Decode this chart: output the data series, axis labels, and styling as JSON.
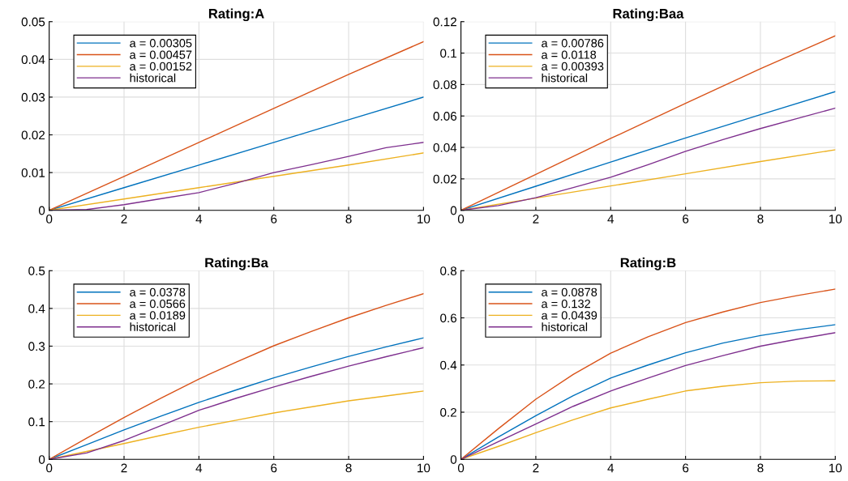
{
  "chart_data": [
    {
      "type": "line",
      "title": "Rating:A",
      "xlim": [
        0,
        10
      ],
      "ylim": [
        0,
        0.05
      ],
      "xticks": [
        0,
        2,
        4,
        6,
        8,
        10
      ],
      "yticks": [
        0,
        0.01,
        0.02,
        0.03,
        0.04,
        0.05
      ],
      "grid": true,
      "legend": "top left",
      "series": [
        {
          "name": "a = 0.00305",
          "color": "#0072bd",
          "x": [
            0,
            2,
            4,
            6,
            8,
            10
          ],
          "values": [
            0,
            0.006,
            0.012,
            0.018,
            0.024,
            0.03
          ]
        },
        {
          "name": "a = 0.00457",
          "color": "#d95319",
          "x": [
            0,
            2,
            4,
            6,
            8,
            10
          ],
          "values": [
            0,
            0.009,
            0.018,
            0.027,
            0.036,
            0.0447
          ]
        },
        {
          "name": "a = 0.00152",
          "color": "#edb120",
          "x": [
            0,
            2,
            4,
            6,
            8,
            10
          ],
          "values": [
            0,
            0.003,
            0.006,
            0.009,
            0.012,
            0.0152
          ]
        },
        {
          "name": "historical",
          "color": "#7e2f8e",
          "x": [
            0,
            1,
            2,
            3,
            4,
            5,
            6,
            7,
            8,
            9,
            10
          ],
          "values": [
            0,
            0.0002,
            0.0015,
            0.0031,
            0.0047,
            0.0072,
            0.01,
            0.0121,
            0.0143,
            0.0166,
            0.018
          ]
        }
      ]
    },
    {
      "type": "line",
      "title": "Rating:Baa",
      "xlim": [
        0,
        10
      ],
      "ylim": [
        0,
        0.12
      ],
      "xticks": [
        0,
        2,
        4,
        6,
        8,
        10
      ],
      "yticks": [
        0,
        0.02,
        0.04,
        0.06,
        0.08,
        0.1,
        0.12
      ],
      "grid": true,
      "legend": "top left",
      "series": [
        {
          "name": "a = 0.00786",
          "color": "#0072bd",
          "x": [
            0,
            2,
            4,
            6,
            8,
            10
          ],
          "values": [
            0,
            0.0153,
            0.0307,
            0.046,
            0.0608,
            0.0755
          ]
        },
        {
          "name": "a = 0.0118",
          "color": "#d95319",
          "x": [
            0,
            2,
            4,
            6,
            8,
            10
          ],
          "values": [
            0,
            0.0228,
            0.0457,
            0.068,
            0.09,
            0.111
          ]
        },
        {
          "name": "a = 0.00393",
          "color": "#edb120",
          "x": [
            0,
            2,
            4,
            6,
            8,
            10
          ],
          "values": [
            0,
            0.0078,
            0.0155,
            0.0232,
            0.031,
            0.0385
          ]
        },
        {
          "name": "historical",
          "color": "#7e2f8e",
          "x": [
            0,
            1,
            2,
            3,
            4,
            5,
            6,
            7,
            8,
            9,
            10
          ],
          "values": [
            0,
            0.003,
            0.008,
            0.0145,
            0.021,
            0.029,
            0.0375,
            0.045,
            0.052,
            0.0585,
            0.065
          ]
        }
      ]
    },
    {
      "type": "line",
      "title": "Rating:Ba",
      "xlim": [
        0,
        10
      ],
      "ylim": [
        0,
        0.5
      ],
      "xticks": [
        0,
        2,
        4,
        6,
        8,
        10
      ],
      "yticks": [
        0,
        0.1,
        0.2,
        0.3,
        0.4,
        0.5
      ],
      "grid": true,
      "legend": "top left",
      "series": [
        {
          "name": "a = 0.0378",
          "color": "#0072bd",
          "x": [
            0,
            1,
            2,
            3,
            4,
            5,
            6,
            7,
            8,
            9,
            10
          ],
          "values": [
            0,
            0.039,
            0.078,
            0.115,
            0.151,
            0.184,
            0.216,
            0.245,
            0.273,
            0.298,
            0.322
          ]
        },
        {
          "name": "a = 0.0566",
          "color": "#d95319",
          "x": [
            0,
            1,
            2,
            3,
            4,
            5,
            6,
            7,
            8,
            9,
            10
          ],
          "values": [
            0,
            0.056,
            0.111,
            0.163,
            0.213,
            0.258,
            0.301,
            0.339,
            0.375,
            0.408,
            0.439
          ]
        },
        {
          "name": "a = 0.0189",
          "color": "#edb120",
          "x": [
            0,
            1,
            2,
            3,
            4,
            5,
            6,
            7,
            8,
            9,
            10
          ],
          "values": [
            0,
            0.021,
            0.042,
            0.064,
            0.085,
            0.104,
            0.123,
            0.139,
            0.155,
            0.168,
            0.181
          ]
        },
        {
          "name": "historical",
          "color": "#7e2f8e",
          "x": [
            0,
            1,
            2,
            3,
            4,
            5,
            6,
            7,
            8,
            9,
            10
          ],
          "values": [
            0,
            0.017,
            0.05,
            0.09,
            0.13,
            0.162,
            0.192,
            0.22,
            0.247,
            0.272,
            0.296
          ]
        }
      ]
    },
    {
      "type": "line",
      "title": "Rating:B",
      "xlim": [
        0,
        10
      ],
      "ylim": [
        0,
        0.8
      ],
      "xticks": [
        0,
        2,
        4,
        6,
        8,
        10
      ],
      "yticks": [
        0,
        0.2,
        0.4,
        0.6,
        0.8
      ],
      "grid": true,
      "legend": "top left",
      "series": [
        {
          "name": "a = 0.0878",
          "color": "#0072bd",
          "x": [
            0,
            1,
            2,
            3,
            4,
            5,
            6,
            7,
            8,
            9,
            10
          ],
          "values": [
            0,
            0.095,
            0.185,
            0.27,
            0.345,
            0.4,
            0.452,
            0.493,
            0.525,
            0.55,
            0.571
          ]
        },
        {
          "name": "a = 0.132",
          "color": "#d95319",
          "x": [
            0,
            1,
            2,
            3,
            4,
            5,
            6,
            7,
            8,
            9,
            10
          ],
          "values": [
            0,
            0.13,
            0.255,
            0.36,
            0.45,
            0.52,
            0.58,
            0.625,
            0.665,
            0.695,
            0.722
          ]
        },
        {
          "name": "a = 0.0439",
          "color": "#edb120",
          "x": [
            0,
            1,
            2,
            3,
            4,
            5,
            6,
            7,
            8,
            9,
            10
          ],
          "values": [
            0,
            0.055,
            0.113,
            0.168,
            0.218,
            0.255,
            0.29,
            0.31,
            0.325,
            0.332,
            0.333
          ]
        },
        {
          "name": "historical",
          "color": "#7e2f8e",
          "x": [
            0,
            1,
            2,
            3,
            4,
            5,
            6,
            7,
            8,
            9,
            10
          ],
          "values": [
            0,
            0.075,
            0.15,
            0.225,
            0.29,
            0.345,
            0.398,
            0.44,
            0.48,
            0.51,
            0.537
          ]
        }
      ]
    }
  ]
}
